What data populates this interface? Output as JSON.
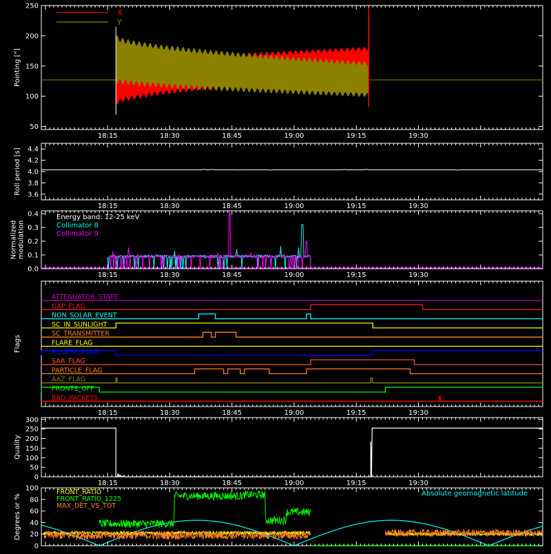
{
  "colors": {
    "bg": "#000000",
    "axis": "#ffffff",
    "red": "#ff0000",
    "olive": "#8b8000",
    "cyan": "#00ffff",
    "magenta": "#ff00ff",
    "orange": "#ff7f2a",
    "yellow": "#ffff00",
    "blue": "#0000ff",
    "green": "#00ff00",
    "purple": "#c000c0",
    "gaprd": "#e02020",
    "brown": "#ff8030",
    "salmon": "#ff5030"
  },
  "chart_data": [
    {
      "id": "pointing",
      "type": "line",
      "ylabel": "Pointing [\"]",
      "ylim": [
        45,
        250
      ],
      "yticks": [
        "50",
        "100",
        "150",
        "200",
        "250"
      ],
      "x_time_ticks": [
        "18:15",
        "18:30",
        "18:45",
        "19:00",
        "19:15",
        "19:30"
      ],
      "series": [
        {
          "name": "X",
          "color_key": "red",
          "baseline": 127,
          "start": "18:17",
          "end": "19:18",
          "center": [
            120,
            160
          ],
          "amp": [
            50,
            12
          ]
        },
        {
          "name": "Y",
          "color_key": "olive",
          "baseline": 127,
          "start": "18:17",
          "end": "19:18",
          "center": [
            160,
            128
          ],
          "amp": [
            38,
            22
          ]
        }
      ]
    },
    {
      "id": "roll",
      "type": "line",
      "ylabel": "Roll period [s]",
      "ylim": [
        3.5,
        4.5
      ],
      "yticks": [
        "3.6",
        "3.8",
        "4.0",
        "4.2",
        "4.4"
      ],
      "x_time_ticks": [
        "18:15",
        "18:30",
        "18:45",
        "19:00",
        "19:15",
        "19:30"
      ],
      "series": [
        {
          "name": "",
          "color_key": "axis",
          "value": 4.03
        }
      ]
    },
    {
      "id": "modulation",
      "type": "line",
      "ylabel": "Normalized modulation",
      "ylabel_lines": [
        "Normalized",
        "modulation"
      ],
      "ylim": [
        0,
        0.42
      ],
      "yticks": [
        "0.0",
        "0.1",
        "0.2",
        "0.3",
        "0.4"
      ],
      "x_time_ticks": [
        "18:15",
        "18:30",
        "18:45",
        "19:00",
        "19:15",
        "19:30"
      ],
      "annotations": [
        "Energy band: 12-25 keV"
      ],
      "series": [
        {
          "name": "Collimator 8",
          "color_key": "cyan",
          "start": "18:15",
          "end": "19:04",
          "level": 0.09
        },
        {
          "name": "Collimator 9",
          "color_key": "magenta",
          "start": "18:15",
          "end": "19:04",
          "level": 0.09
        }
      ]
    },
    {
      "id": "flags",
      "type": "line",
      "ylabel": "Flags",
      "x_time_ticks": [
        "18:15",
        "18:30",
        "18:45",
        "19:00",
        "19:15",
        "19:30"
      ],
      "series": [
        {
          "name": "ATTENUATOR_STATE",
          "color_key": "purple",
          "on": []
        },
        {
          "name": "GAP_FLAG",
          "color_key": "gaprd",
          "on": [
            [
              "19:04",
              "19:31"
            ]
          ]
        },
        {
          "name": "NON_SOLAR_EVENT",
          "color_key": "cyan",
          "on": [
            [
              "18:37",
              "18:41"
            ],
            [
              "19:03",
              "19:04"
            ]
          ]
        },
        {
          "name": "SC_IN_SUNLIGHT",
          "color_key": "yellow",
          "on": [
            [
              "18:17",
              "19:19"
            ]
          ]
        },
        {
          "name": "SC_TRANSMITTER",
          "color_key": "orange",
          "on": [
            [
              "18:38",
              "18:40"
            ],
            [
              "18:41",
              "18:46"
            ]
          ]
        },
        {
          "name": "FLARE_FLAG",
          "color_key": "yellow",
          "on": []
        },
        {
          "name": "ECLIPSE_FLAG",
          "color_key": "blue",
          "on": [
            [
              "17:59",
              "18:17"
            ],
            [
              "19:19",
              "20:00"
            ]
          ]
        },
        {
          "name": "SAA_FLAG",
          "color_key": "salmon",
          "on": [
            [
              "19:04",
              "19:29"
            ]
          ]
        },
        {
          "name": "PARTICLE_FLAG",
          "color_key": "brown",
          "on": [
            [
              "18:36",
              "18:43"
            ],
            [
              "18:44",
              "18:47"
            ],
            [
              "18:48",
              "18:54"
            ],
            [
              "19:03",
              "19:28"
            ]
          ]
        },
        {
          "name": "AAZ_FLAG",
          "color_key": "olive",
          "on": [
            [
              "18:17",
              "18:17.3"
            ],
            [
              "19:18.5",
              "19:18.9"
            ]
          ]
        },
        {
          "name": "FRONTS_OFF",
          "color_key": "green",
          "on": [
            [
              "17:59",
              "18:13"
            ],
            [
              "19:22",
              "20:00"
            ]
          ]
        },
        {
          "name": "BAD_PACKETS",
          "color_key": "red",
          "on": [
            [
              "19:35",
              "19:35.3"
            ]
          ]
        }
      ]
    },
    {
      "id": "quality",
      "type": "line",
      "ylabel": "Quality",
      "ylim": [
        0,
        310
      ],
      "yticks": [
        "0",
        "50",
        "100",
        "150",
        "200",
        "250",
        "300"
      ],
      "x_time_ticks": [
        "18:15",
        "18:30",
        "18:45",
        "19:00",
        "19:15",
        "19:30"
      ],
      "series": [
        {
          "name": "",
          "color_key": "axis"
        }
      ]
    },
    {
      "id": "ratios",
      "type": "line",
      "ylabel": "Degrees or %",
      "ylim": [
        0,
        100
      ],
      "yticks": [
        "0",
        "20",
        "40",
        "60",
        "80",
        "100"
      ],
      "annotations": [
        "Absolute geomagnetic latitude"
      ],
      "series": [
        {
          "name": "FRONT_RATIO",
          "color_key": "yellow"
        },
        {
          "name": "FRONT_RATIO_1225",
          "color_key": "green"
        },
        {
          "name": "MAX_DET_VS_TOT",
          "color_key": "orange"
        }
      ]
    }
  ]
}
